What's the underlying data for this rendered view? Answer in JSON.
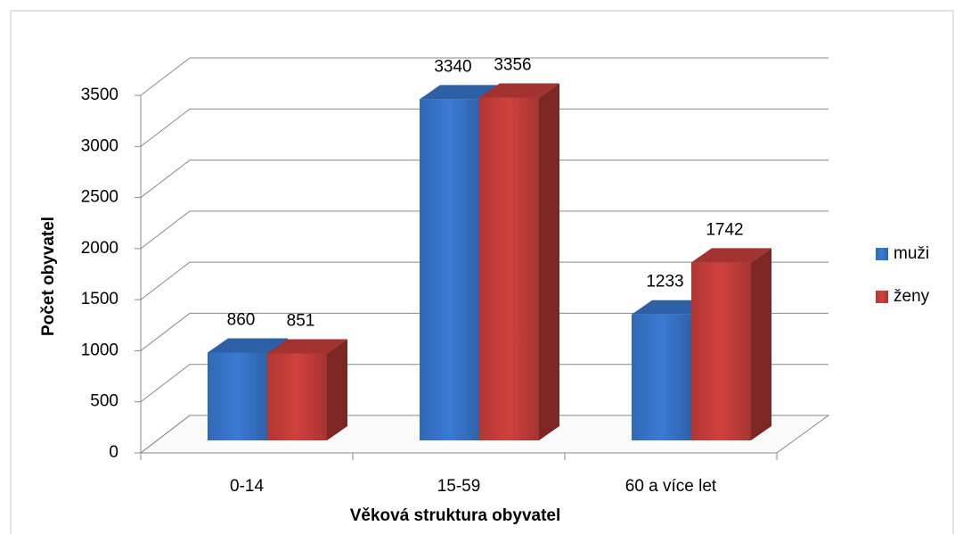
{
  "chart_data": {
    "type": "bar3d",
    "x_label": "Věková struktura obyvatel",
    "y_label": "Počet obyvatel",
    "categories": [
      "0-14",
      "15-59",
      "60 a více let"
    ],
    "series": [
      {
        "name": "muži",
        "color": "#3a7bd5",
        "values": [
          860,
          3340,
          1233
        ]
      },
      {
        "name": "ženy",
        "color": "#d0413d",
        "values": [
          851,
          3356,
          1742
        ]
      }
    ],
    "ylim": [
      0,
      3500
    ],
    "yticks": [
      0,
      500,
      1000,
      1500,
      2000,
      2500,
      3000,
      3500
    ],
    "grid": true,
    "legend": "right"
  }
}
